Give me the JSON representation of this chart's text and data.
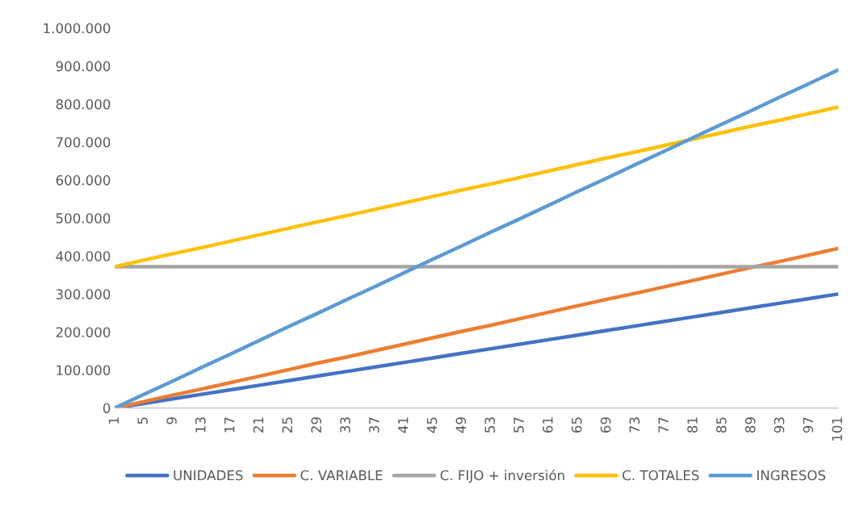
{
  "chart_data": {
    "type": "line",
    "x": [
      1,
      5,
      9,
      13,
      17,
      21,
      25,
      29,
      33,
      37,
      41,
      45,
      49,
      53,
      57,
      61,
      65,
      69,
      73,
      77,
      81,
      85,
      89,
      93,
      97,
      101
    ],
    "xlim": [
      1,
      101
    ],
    "xticks": [
      1,
      5,
      9,
      13,
      17,
      21,
      25,
      29,
      33,
      37,
      41,
      45,
      49,
      53,
      57,
      61,
      65,
      69,
      73,
      77,
      81,
      85,
      89,
      93,
      97,
      101
    ],
    "ylim": [
      0,
      1000000
    ],
    "yticks": [
      {
        "value": 0,
        "label": "0"
      },
      {
        "value": 100000,
        "label": "100.000"
      },
      {
        "value": 200000,
        "label": "200.000"
      },
      {
        "value": 300000,
        "label": "300.000"
      },
      {
        "value": 400000,
        "label": "400.000"
      },
      {
        "value": 500000,
        "label": "500.000"
      },
      {
        "value": 600000,
        "label": "600.000"
      },
      {
        "value": 700000,
        "label": "700.000"
      },
      {
        "value": 800000,
        "label": "800.000"
      },
      {
        "value": 900000,
        "label": "900.000"
      },
      {
        "value": 1000000,
        "label": "1.000.000"
      }
    ],
    "grid": false,
    "legend": "bottom",
    "series": [
      {
        "name": "UNIDADES",
        "color": "#4472c4",
        "values": [
          0,
          12000,
          24000,
          36000,
          48000,
          60000,
          72000,
          84000,
          96000,
          108000,
          120000,
          132000,
          144000,
          156000,
          168000,
          180000,
          192000,
          204000,
          216000,
          228000,
          240000,
          252000,
          264000,
          276000,
          288000,
          300000
        ]
      },
      {
        "name": "C. VARIABLE",
        "color": "#ed7d31",
        "values": [
          0,
          17000,
          34000,
          50000,
          67000,
          84000,
          101000,
          118000,
          134000,
          151000,
          168000,
          185000,
          202000,
          218000,
          235000,
          252000,
          269000,
          286000,
          302000,
          319000,
          336000,
          353000,
          370000,
          386000,
          403000,
          420000
        ]
      },
      {
        "name": "C. FIJO + inversión",
        "color": "#a5a5a5",
        "values": [
          372000,
          372000,
          372000,
          372000,
          372000,
          372000,
          372000,
          372000,
          372000,
          372000,
          372000,
          372000,
          372000,
          372000,
          372000,
          372000,
          372000,
          372000,
          372000,
          372000,
          372000,
          372000,
          372000,
          372000,
          372000,
          372000
        ]
      },
      {
        "name": "C. TOTALES",
        "color": "#ffc000",
        "values": [
          372000,
          389000,
          406000,
          422000,
          439000,
          456000,
          473000,
          490000,
          506000,
          523000,
          540000,
          557000,
          574000,
          590000,
          607000,
          624000,
          641000,
          658000,
          674000,
          691000,
          708000,
          725000,
          742000,
          758000,
          775000,
          792000
        ]
      },
      {
        "name": "INGRESOS",
        "color": "#5b9bd5",
        "values": [
          0,
          36000,
          71000,
          107000,
          142000,
          178000,
          214000,
          249000,
          285000,
          320000,
          356000,
          392000,
          427000,
          463000,
          498000,
          534000,
          570000,
          605000,
          641000,
          676000,
          712000,
          748000,
          783000,
          819000,
          854000,
          890000
        ]
      }
    ]
  }
}
